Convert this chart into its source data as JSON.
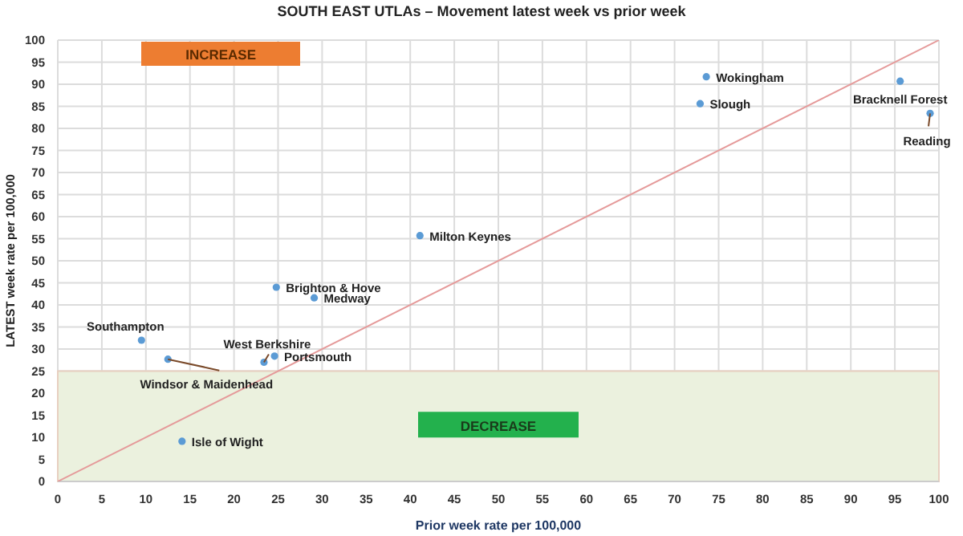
{
  "chart_data": {
    "type": "scatter",
    "title": "SOUTH EAST UTLAs – Movement latest week vs prior week",
    "xlabel": "Prior week rate per 100,000",
    "ylabel": "LATEST week rate per 100,000",
    "series": [
      {
        "name": "Wokingham",
        "color": "#5b9bd5",
        "x": [
          73.6
        ],
        "values": [
          91.7
        ]
      },
      {
        "name": "Slough",
        "color": "#5b9bd5",
        "x": [
          72.9
        ],
        "values": [
          85.6
        ]
      },
      {
        "name": "Bracknell Forest",
        "color": "#5b9bd5",
        "x": [
          95.6
        ],
        "values": [
          90.7
        ]
      },
      {
        "name": "Reading",
        "color": "#5b9bd5",
        "x": [
          99.0
        ],
        "values": [
          83.4
        ]
      },
      {
        "name": "Milton Keynes",
        "color": "#5b9bd5",
        "x": [
          41.1
        ],
        "values": [
          55.7
        ]
      },
      {
        "name": "Brighton & Hove",
        "color": "#5b9bd5",
        "x": [
          24.8
        ],
        "values": [
          44.0
        ]
      },
      {
        "name": "Medway",
        "color": "#5b9bd5",
        "x": [
          29.1
        ],
        "values": [
          41.6
        ]
      },
      {
        "name": "Southampton",
        "color": "#5b9bd5",
        "x": [
          9.5
        ],
        "values": [
          32.0
        ]
      },
      {
        "name": "Windsor & Maidenhead",
        "color": "#5b9bd5",
        "x": [
          12.5
        ],
        "values": [
          27.7
        ]
      },
      {
        "name": "West Berkshire",
        "color": "#5b9bd5",
        "x": [
          23.4
        ],
        "values": [
          27.0
        ]
      },
      {
        "name": "Portsmouth",
        "color": "#5b9bd5",
        "x": [
          24.6
        ],
        "values": [
          28.4
        ]
      },
      {
        "name": "Isle of Wight",
        "color": "#5b9bd5",
        "x": [
          14.1
        ],
        "values": [
          9.1
        ]
      },
      {
        "type": "line",
        "color": "#e59a9a",
        "marker": "none",
        "x": [
          0,
          100
        ],
        "values": [
          0,
          100
        ]
      }
    ],
    "xlim": [
      0,
      100
    ],
    "xticks": [
      0,
      5,
      10,
      15,
      20,
      25,
      30,
      35,
      40,
      45,
      50,
      55,
      60,
      65,
      70,
      75,
      80,
      85,
      90,
      95,
      100
    ],
    "ylim": [
      0,
      100
    ],
    "yticks": [
      0,
      5,
      10,
      15,
      20,
      25,
      30,
      35,
      40,
      45,
      50,
      55,
      60,
      65,
      70,
      75,
      80,
      85,
      90,
      95,
      100
    ],
    "bands": [
      {
        "axis": "y",
        "from": 0,
        "to": 25,
        "label": "DECREASE",
        "color": "#ebf1de"
      }
    ],
    "annotations": [
      "INCREASE"
    ],
    "grid": true,
    "marker": "circle"
  }
}
